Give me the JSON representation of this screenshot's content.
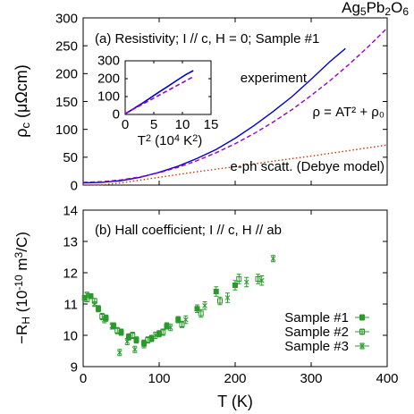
{
  "chart_data": [
    {
      "type": "line",
      "title": [
        "Ag",
        "5",
        "Pb",
        "2",
        "O",
        "6"
      ],
      "annotation": "(a) Resistivity; I // c, H = 0; Sample #1",
      "ylabel": [
        "ρ",
        "c",
        " (μΩcm)"
      ],
      "xlim": [
        0,
        400
      ],
      "xticks": [
        0,
        100,
        200,
        300,
        400
      ],
      "ylim": [
        0,
        300
      ],
      "yticks": [
        0,
        50,
        100,
        150,
        200,
        250,
        300
      ],
      "series": [
        {
          "name": "experiment",
          "color": "#0000cc",
          "style": "solid",
          "x": [
            0,
            25,
            50,
            75,
            100,
            125,
            150,
            175,
            200,
            225,
            250,
            275,
            300,
            325,
            345
          ],
          "values": [
            4,
            5,
            8,
            14,
            23,
            34,
            48,
            64,
            84,
            107,
            132,
            159,
            190,
            222,
            245
          ]
        },
        {
          "name": "ρ = AT² + ρ₀",
          "color": "#9900cc",
          "style": "dashed",
          "x": [
            0,
            25,
            50,
            75,
            100,
            125,
            150,
            175,
            200,
            225,
            250,
            275,
            300,
            325,
            350,
            375,
            400
          ],
          "values": [
            5,
            6.1,
            9.3,
            14.7,
            22.3,
            32,
            43.9,
            58,
            74.2,
            92.6,
            113.1,
            135.8,
            160.7,
            187.7,
            216.9,
            248.2,
            281.8
          ]
        },
        {
          "name": "e-ph scatt. (Debye model)",
          "color": "#cc3300",
          "style": "dotted",
          "x": [
            0,
            25,
            50,
            75,
            100,
            150,
            200,
            250,
            300,
            350,
            400
          ],
          "values": [
            0,
            0.5,
            4,
            9,
            14,
            24,
            33,
            43,
            52,
            62,
            72
          ]
        }
      ],
      "inset": {
        "xlabel": [
          "T",
          "2",
          " (10",
          "4",
          " K",
          "2",
          ")"
        ],
        "xlim": [
          0,
          15
        ],
        "xticks": [
          0,
          5,
          10,
          15
        ],
        "ylim": [
          0,
          300
        ],
        "yticks": [
          0,
          100,
          200,
          300
        ],
        "series": [
          {
            "color": "#0000cc",
            "style": "solid",
            "x": [
              0,
              0.0625,
              0.25,
              0.5625,
              1,
              1.5625,
              2.25,
              3.0625,
              4,
              5.0625,
              6.25,
              7.5625,
              9,
              10.5625,
              11.9
            ],
            "values": [
              4,
              5,
              8,
              14,
              23,
              34,
              48,
              64,
              84,
              107,
              132,
              159,
              190,
              222,
              245
            ]
          },
          {
            "color": "#9900cc",
            "style": "dashed",
            "x": [
              0,
              12
            ],
            "values": [
              5,
              212.6
            ]
          }
        ]
      }
    },
    {
      "type": "scatter",
      "annotation": "(b) Hall coefficient; I // c, H // ab",
      "ylabel": [
        "−R",
        "H",
        " (10",
        "-10",
        " m",
        "3",
        "/C)"
      ],
      "xlabel": [
        "T",
        " (K)"
      ],
      "xlim": [
        0,
        400
      ],
      "xticks": [
        0,
        100,
        200,
        300,
        400
      ],
      "ylim": [
        9,
        14
      ],
      "yticks": [
        9,
        10,
        11,
        12,
        13,
        14
      ],
      "legend": "lower right",
      "series": [
        {
          "name": "Sample #1",
          "color": "#2a9a2a",
          "marker": "filled-square",
          "x": [
            2,
            10,
            20,
            30,
            40,
            50,
            60,
            70,
            80,
            90,
            100,
            110,
            125,
            150,
            175,
            200
          ],
          "values": [
            11.2,
            11.25,
            10.85,
            10.55,
            10.3,
            10.1,
            9.95,
            9.85,
            9.75,
            9.9,
            10.05,
            10.3,
            10.5,
            10.85,
            11.4,
            11.6
          ],
          "errors": [
            0.08,
            0.08,
            0.1,
            0.1,
            0.1,
            0.1,
            0.1,
            0.1,
            0.1,
            0.1,
            0.1,
            0.1,
            0.1,
            0.12,
            0.15,
            0.15
          ]
        },
        {
          "name": "Sample #2",
          "color": "#2a9a2a",
          "marker": "open-square",
          "x": [
            5,
            15,
            25,
            45,
            65,
            85,
            105,
            130,
            155,
            180,
            205,
            230
          ],
          "values": [
            11.15,
            11.1,
            10.6,
            10.15,
            10.0,
            9.85,
            10.1,
            10.35,
            10.7,
            11.1,
            11.8,
            11.8
          ],
          "errors": [
            0.08,
            0.08,
            0.1,
            0.1,
            0.1,
            0.1,
            0.1,
            0.1,
            0.12,
            0.12,
            0.15,
            0.15
          ]
        },
        {
          "name": "Sample #3",
          "color": "#2a9a2a",
          "marker": "cross",
          "x": [
            5,
            15,
            28,
            38,
            48,
            58,
            68,
            80,
            95,
            115,
            135,
            160,
            190,
            215,
            235,
            250
          ],
          "values": [
            11.3,
            11.0,
            10.5,
            10.3,
            9.45,
            9.8,
            9.55,
            9.7,
            10.0,
            10.25,
            10.5,
            10.95,
            11.2,
            11.7,
            11.75,
            12.45
          ],
          "errors": [
            0.08,
            0.08,
            0.1,
            0.1,
            0.1,
            0.1,
            0.1,
            0.1,
            0.1,
            0.1,
            0.12,
            0.12,
            0.15,
            0.15,
            0.15,
            0.1
          ]
        }
      ]
    }
  ]
}
